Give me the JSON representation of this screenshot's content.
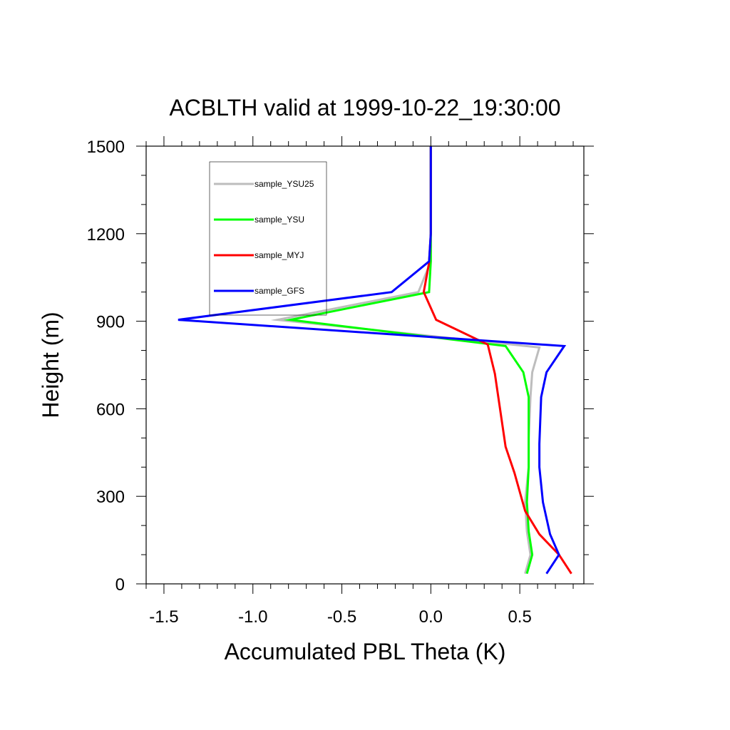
{
  "chart_data": {
    "type": "line",
    "title": "ACBLTH valid at 1999-10-22_19:30:00",
    "xlabel": "Accumulated PBL Theta (K)",
    "ylabel": "Height (m)",
    "xlim": [
      -1.6,
      0.86
    ],
    "ylim": [
      0,
      1500
    ],
    "x_ticks": [
      -1.5,
      -1.0,
      -0.5,
      0.0,
      0.5
    ],
    "x_tick_labels": [
      "-1.5",
      "-1.0",
      "-0.5",
      "0.0",
      "0.5"
    ],
    "y_ticks": [
      0,
      300,
      600,
      900,
      1200,
      1500
    ],
    "y_tick_labels": [
      "0",
      "300",
      "600",
      "900",
      "1200",
      "1500"
    ],
    "legend_position": "top-left",
    "grid": false,
    "series": [
      {
        "name": "sample_YSU25",
        "color": "#bdbdbd",
        "points": [
          {
            "x": 0.53,
            "y": 35
          },
          {
            "x": 0.56,
            "y": 100
          },
          {
            "x": 0.54,
            "y": 180
          },
          {
            "x": 0.53,
            "y": 280
          },
          {
            "x": 0.55,
            "y": 400
          },
          {
            "x": 0.55,
            "y": 500
          },
          {
            "x": 0.56,
            "y": 640
          },
          {
            "x": 0.57,
            "y": 725
          },
          {
            "x": 0.61,
            "y": 810
          },
          {
            "x": -0.86,
            "y": 905
          },
          {
            "x": -0.07,
            "y": 1000
          },
          {
            "x": 0.0,
            "y": 1105
          },
          {
            "x": 0.0,
            "y": 1200
          },
          {
            "x": 0.0,
            "y": 1500
          }
        ]
      },
      {
        "name": "sample_YSU",
        "color": "#00ff00",
        "points": [
          {
            "x": 0.54,
            "y": 35
          },
          {
            "x": 0.57,
            "y": 100
          },
          {
            "x": 0.55,
            "y": 180
          },
          {
            "x": 0.54,
            "y": 280
          },
          {
            "x": 0.55,
            "y": 400
          },
          {
            "x": 0.55,
            "y": 500
          },
          {
            "x": 0.55,
            "y": 640
          },
          {
            "x": 0.52,
            "y": 725
          },
          {
            "x": 0.42,
            "y": 815
          },
          {
            "x": -0.79,
            "y": 905
          },
          {
            "x": -0.01,
            "y": 1000
          },
          {
            "x": 0.0,
            "y": 1105
          },
          {
            "x": 0.0,
            "y": 1200
          },
          {
            "x": 0.0,
            "y": 1500
          }
        ]
      },
      {
        "name": "sample_MYJ",
        "color": "#ff0000",
        "points": [
          {
            "x": 0.79,
            "y": 35
          },
          {
            "x": 0.72,
            "y": 100
          },
          {
            "x": 0.61,
            "y": 170
          },
          {
            "x": 0.53,
            "y": 250
          },
          {
            "x": 0.47,
            "y": 380
          },
          {
            "x": 0.42,
            "y": 470
          },
          {
            "x": 0.36,
            "y": 720
          },
          {
            "x": 0.32,
            "y": 820
          },
          {
            "x": 0.03,
            "y": 905
          },
          {
            "x": -0.04,
            "y": 1000
          },
          {
            "x": -0.01,
            "y": 1100
          },
          {
            "x": 0.0,
            "y": 1200
          },
          {
            "x": 0.0,
            "y": 1500
          }
        ]
      },
      {
        "name": "sample_GFS",
        "color": "#0000ff",
        "points": [
          {
            "x": 0.65,
            "y": 35
          },
          {
            "x": 0.72,
            "y": 100
          },
          {
            "x": 0.67,
            "y": 170
          },
          {
            "x": 0.63,
            "y": 280
          },
          {
            "x": 0.61,
            "y": 400
          },
          {
            "x": 0.61,
            "y": 480
          },
          {
            "x": 0.62,
            "y": 640
          },
          {
            "x": 0.65,
            "y": 725
          },
          {
            "x": 0.75,
            "y": 815
          },
          {
            "x": -1.42,
            "y": 905
          },
          {
            "x": -0.22,
            "y": 1000
          },
          {
            "x": -0.01,
            "y": 1105
          },
          {
            "x": 0.0,
            "y": 1200
          },
          {
            "x": 0.0,
            "y": 1500
          }
        ]
      }
    ]
  }
}
